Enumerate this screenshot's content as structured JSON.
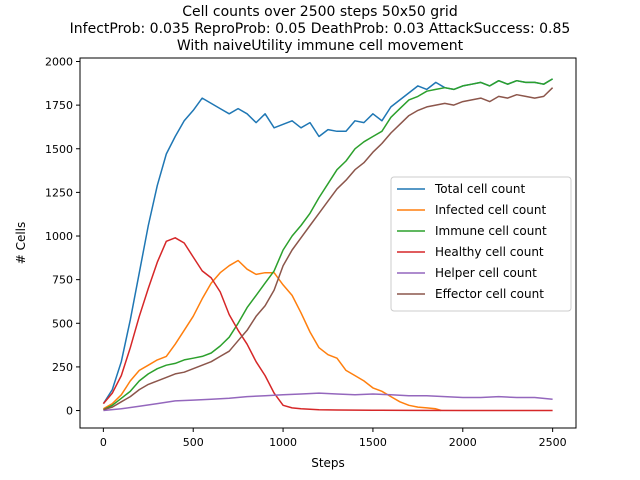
{
  "chart_data": {
    "type": "line",
    "title_lines": [
      "Cell counts over 2500 steps 50x50 grid",
      "InfectProb: 0.035 ReproProb: 0.05 DeathProb: 0.03 AttackSuccess: 0.85",
      "With naiveUtility immune cell movement"
    ],
    "xlabel": "Steps",
    "ylabel": "# Cells",
    "xlim": [
      -130,
      2630
    ],
    "ylim": [
      -100,
      2020
    ],
    "xticks": [
      0,
      500,
      1000,
      1500,
      2000,
      2500
    ],
    "yticks": [
      0,
      250,
      500,
      750,
      1000,
      1250,
      1500,
      1750,
      2000
    ],
    "legend_position": "center-right",
    "series": [
      {
        "name": "Total cell count",
        "color": "#1f77b4",
        "points": [
          [
            0,
            40
          ],
          [
            50,
            120
          ],
          [
            100,
            280
          ],
          [
            150,
            520
          ],
          [
            200,
            790
          ],
          [
            250,
            1060
          ],
          [
            300,
            1290
          ],
          [
            350,
            1470
          ],
          [
            400,
            1570
          ],
          [
            450,
            1660
          ],
          [
            500,
            1720
          ],
          [
            550,
            1790
          ],
          [
            600,
            1760
          ],
          [
            650,
            1730
          ],
          [
            700,
            1700
          ],
          [
            750,
            1730
          ],
          [
            800,
            1700
          ],
          [
            850,
            1650
          ],
          [
            900,
            1700
          ],
          [
            950,
            1620
          ],
          [
            1000,
            1640
          ],
          [
            1050,
            1660
          ],
          [
            1100,
            1620
          ],
          [
            1150,
            1650
          ],
          [
            1200,
            1570
          ],
          [
            1250,
            1610
          ],
          [
            1300,
            1600
          ],
          [
            1350,
            1600
          ],
          [
            1400,
            1660
          ],
          [
            1450,
            1650
          ],
          [
            1500,
            1700
          ],
          [
            1550,
            1660
          ],
          [
            1600,
            1740
          ],
          [
            1650,
            1780
          ],
          [
            1700,
            1820
          ],
          [
            1750,
            1860
          ],
          [
            1800,
            1840
          ],
          [
            1850,
            1880
          ],
          [
            1900,
            1850
          ],
          [
            1950,
            1840
          ],
          [
            2000,
            1860
          ],
          [
            2050,
            1870
          ],
          [
            2100,
            1880
          ],
          [
            2150,
            1860
          ],
          [
            2200,
            1890
          ],
          [
            2250,
            1870
          ],
          [
            2300,
            1890
          ],
          [
            2350,
            1880
          ],
          [
            2400,
            1880
          ],
          [
            2450,
            1870
          ],
          [
            2500,
            1900
          ]
        ]
      },
      {
        "name": "Infected cell count",
        "color": "#ff7f0e",
        "points": [
          [
            0,
            10
          ],
          [
            50,
            40
          ],
          [
            100,
            90
          ],
          [
            150,
            170
          ],
          [
            200,
            230
          ],
          [
            250,
            260
          ],
          [
            300,
            290
          ],
          [
            350,
            310
          ],
          [
            400,
            380
          ],
          [
            450,
            460
          ],
          [
            500,
            540
          ],
          [
            550,
            640
          ],
          [
            600,
            730
          ],
          [
            650,
            790
          ],
          [
            700,
            830
          ],
          [
            750,
            860
          ],
          [
            800,
            810
          ],
          [
            850,
            780
          ],
          [
            900,
            790
          ],
          [
            950,
            790
          ],
          [
            1000,
            720
          ],
          [
            1050,
            660
          ],
          [
            1100,
            560
          ],
          [
            1150,
            450
          ],
          [
            1200,
            360
          ],
          [
            1250,
            320
          ],
          [
            1300,
            300
          ],
          [
            1350,
            230
          ],
          [
            1400,
            200
          ],
          [
            1450,
            170
          ],
          [
            1500,
            130
          ],
          [
            1550,
            110
          ],
          [
            1600,
            80
          ],
          [
            1650,
            50
          ],
          [
            1700,
            30
          ],
          [
            1750,
            20
          ],
          [
            1800,
            15
          ],
          [
            1850,
            10
          ],
          [
            1880,
            0
          ]
        ]
      },
      {
        "name": "Immune cell count",
        "color": "#2ca02c",
        "points": [
          [
            0,
            5
          ],
          [
            50,
            30
          ],
          [
            100,
            70
          ],
          [
            150,
            110
          ],
          [
            200,
            170
          ],
          [
            250,
            210
          ],
          [
            300,
            240
          ],
          [
            350,
            260
          ],
          [
            400,
            270
          ],
          [
            450,
            290
          ],
          [
            500,
            300
          ],
          [
            550,
            310
          ],
          [
            600,
            330
          ],
          [
            650,
            370
          ],
          [
            700,
            420
          ],
          [
            750,
            500
          ],
          [
            800,
            590
          ],
          [
            850,
            660
          ],
          [
            900,
            730
          ],
          [
            950,
            800
          ],
          [
            1000,
            920
          ],
          [
            1050,
            1000
          ],
          [
            1100,
            1060
          ],
          [
            1150,
            1130
          ],
          [
            1200,
            1220
          ],
          [
            1250,
            1300
          ],
          [
            1300,
            1380
          ],
          [
            1350,
            1430
          ],
          [
            1400,
            1500
          ],
          [
            1450,
            1540
          ],
          [
            1500,
            1570
          ],
          [
            1550,
            1600
          ],
          [
            1600,
            1680
          ],
          [
            1650,
            1730
          ],
          [
            1700,
            1780
          ],
          [
            1750,
            1800
          ],
          [
            1800,
            1830
          ],
          [
            1850,
            1840
          ],
          [
            1900,
            1850
          ],
          [
            1950,
            1840
          ],
          [
            2000,
            1860
          ],
          [
            2050,
            1870
          ],
          [
            2100,
            1880
          ],
          [
            2150,
            1860
          ],
          [
            2200,
            1890
          ],
          [
            2250,
            1870
          ],
          [
            2300,
            1890
          ],
          [
            2350,
            1880
          ],
          [
            2400,
            1880
          ],
          [
            2450,
            1870
          ],
          [
            2500,
            1900
          ]
        ]
      },
      {
        "name": "Healthy cell count",
        "color": "#d62728",
        "points": [
          [
            0,
            40
          ],
          [
            50,
            100
          ],
          [
            100,
            200
          ],
          [
            150,
            360
          ],
          [
            200,
            540
          ],
          [
            250,
            700
          ],
          [
            300,
            850
          ],
          [
            350,
            970
          ],
          [
            400,
            990
          ],
          [
            450,
            960
          ],
          [
            500,
            880
          ],
          [
            550,
            800
          ],
          [
            600,
            760
          ],
          [
            650,
            680
          ],
          [
            700,
            550
          ],
          [
            750,
            460
          ],
          [
            800,
            380
          ],
          [
            850,
            280
          ],
          [
            900,
            200
          ],
          [
            950,
            100
          ],
          [
            1000,
            30
          ],
          [
            1050,
            15
          ],
          [
            1100,
            10
          ],
          [
            1200,
            5
          ],
          [
            1300,
            3
          ],
          [
            1500,
            2
          ],
          [
            1700,
            1
          ],
          [
            2000,
            0
          ],
          [
            2500,
            0
          ]
        ]
      },
      {
        "name": "Helper cell count",
        "color": "#9467bd",
        "points": [
          [
            0,
            0
          ],
          [
            100,
            10
          ],
          [
            200,
            25
          ],
          [
            300,
            40
          ],
          [
            400,
            55
          ],
          [
            500,
            60
          ],
          [
            600,
            65
          ],
          [
            700,
            70
          ],
          [
            800,
            80
          ],
          [
            900,
            85
          ],
          [
            1000,
            90
          ],
          [
            1100,
            95
          ],
          [
            1200,
            100
          ],
          [
            1300,
            95
          ],
          [
            1400,
            90
          ],
          [
            1500,
            95
          ],
          [
            1600,
            90
          ],
          [
            1700,
            85
          ],
          [
            1800,
            85
          ],
          [
            1900,
            80
          ],
          [
            2000,
            75
          ],
          [
            2100,
            75
          ],
          [
            2200,
            80
          ],
          [
            2300,
            75
          ],
          [
            2400,
            75
          ],
          [
            2500,
            65
          ]
        ]
      },
      {
        "name": "Effector cell count",
        "color": "#8c564b",
        "points": [
          [
            0,
            5
          ],
          [
            50,
            20
          ],
          [
            100,
            50
          ],
          [
            150,
            80
          ],
          [
            200,
            120
          ],
          [
            250,
            150
          ],
          [
            300,
            170
          ],
          [
            350,
            190
          ],
          [
            400,
            210
          ],
          [
            450,
            220
          ],
          [
            500,
            240
          ],
          [
            550,
            260
          ],
          [
            600,
            280
          ],
          [
            650,
            310
          ],
          [
            700,
            340
          ],
          [
            750,
            400
          ],
          [
            800,
            460
          ],
          [
            850,
            540
          ],
          [
            900,
            600
          ],
          [
            950,
            690
          ],
          [
            1000,
            830
          ],
          [
            1050,
            920
          ],
          [
            1100,
            990
          ],
          [
            1150,
            1060
          ],
          [
            1200,
            1130
          ],
          [
            1250,
            1200
          ],
          [
            1300,
            1270
          ],
          [
            1350,
            1320
          ],
          [
            1400,
            1380
          ],
          [
            1450,
            1420
          ],
          [
            1500,
            1480
          ],
          [
            1550,
            1530
          ],
          [
            1600,
            1590
          ],
          [
            1650,
            1640
          ],
          [
            1700,
            1690
          ],
          [
            1750,
            1720
          ],
          [
            1800,
            1740
          ],
          [
            1850,
            1750
          ],
          [
            1900,
            1760
          ],
          [
            1950,
            1750
          ],
          [
            2000,
            1770
          ],
          [
            2050,
            1780
          ],
          [
            2100,
            1790
          ],
          [
            2150,
            1770
          ],
          [
            2200,
            1800
          ],
          [
            2250,
            1790
          ],
          [
            2300,
            1810
          ],
          [
            2350,
            1800
          ],
          [
            2400,
            1790
          ],
          [
            2450,
            1800
          ],
          [
            2500,
            1850
          ]
        ]
      }
    ]
  }
}
